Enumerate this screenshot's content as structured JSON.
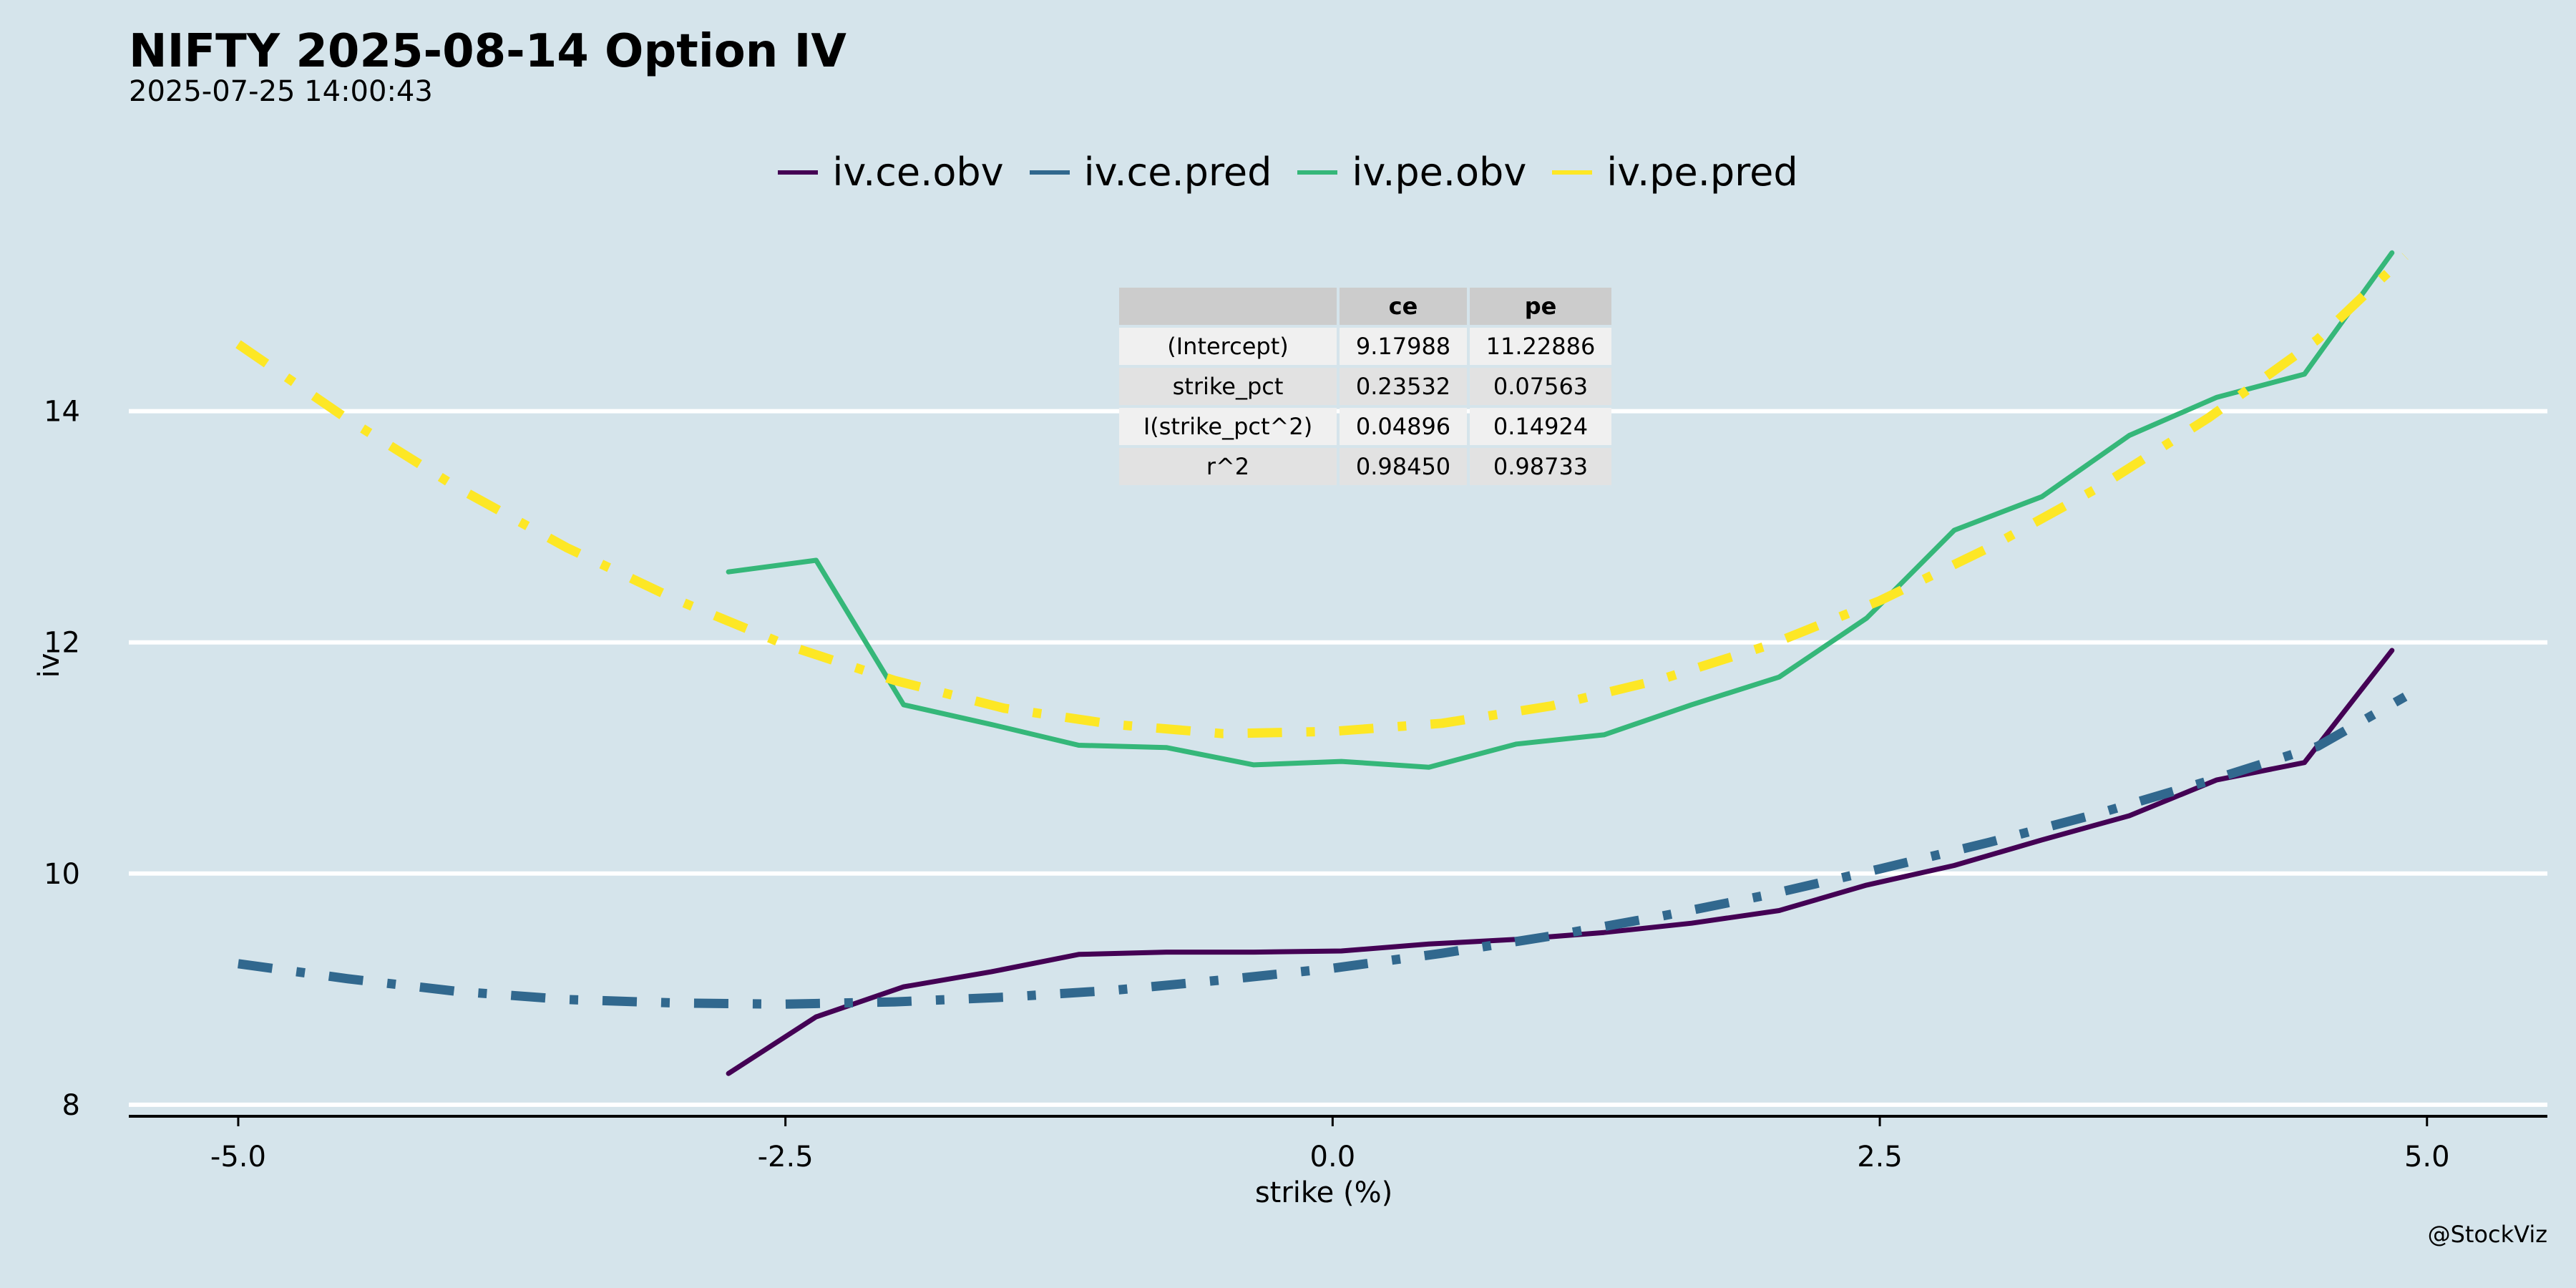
{
  "title": "NIFTY 2025-08-14 Option IV",
  "subtitle": "2025-07-25 14:00:43",
  "credit": "@StockViz",
  "chart_data": {
    "type": "line",
    "xlabel": "strike (%)",
    "ylabel": "iv",
    "xlim": [
      -5.5,
      5.55
    ],
    "ylim": [
      7.9,
      15.7
    ],
    "xticks": [
      -5.0,
      -2.5,
      0.0,
      2.5,
      5.0
    ],
    "xtick_labels": [
      "-5.0",
      "-2.5",
      "0.0",
      "2.5",
      "5.0"
    ],
    "yticks": [
      8,
      10,
      12,
      14
    ],
    "ytick_labels": [
      "8",
      "10",
      "12",
      "14"
    ],
    "grid": "horizontal major",
    "legend_position": "top",
    "series": [
      {
        "name": "iv.ce.obv",
        "color": "#440154",
        "dash": "solid",
        "x": [
          -2.76,
          -2.36,
          -1.96,
          -1.56,
          -1.16,
          -0.76,
          -0.36,
          0.04,
          0.44,
          0.84,
          1.24,
          1.64,
          2.04,
          2.44,
          2.84,
          3.24,
          3.64,
          4.04,
          4.44,
          4.84
        ],
        "y": [
          8.27,
          8.76,
          9.02,
          9.15,
          9.3,
          9.32,
          9.32,
          9.33,
          9.39,
          9.43,
          9.49,
          9.57,
          9.68,
          9.9,
          10.07,
          10.29,
          10.5,
          10.81,
          10.96,
          11.93
        ]
      },
      {
        "name": "iv.ce.pred",
        "color": "#31688e",
        "dash": "dashdot",
        "x": [
          -5.0,
          -4.5,
          -4.0,
          -3.5,
          -3.0,
          -2.5,
          -2.0,
          -1.5,
          -1.0,
          -0.5,
          0.0,
          0.5,
          1.0,
          1.5,
          2.0,
          2.5,
          3.0,
          3.5,
          4.0,
          4.5,
          4.9
        ],
        "y": [
          9.22,
          9.09,
          8.98,
          8.91,
          8.88,
          8.87,
          8.89,
          8.93,
          8.99,
          9.08,
          9.18,
          9.31,
          9.46,
          9.63,
          9.82,
          10.04,
          10.27,
          10.52,
          10.8,
          11.1,
          11.53
        ]
      },
      {
        "name": "iv.pe.obv",
        "color": "#35b779",
        "dash": "solid",
        "x": [
          -2.76,
          -2.36,
          -1.96,
          -1.56,
          -1.16,
          -0.76,
          -0.36,
          0.04,
          0.44,
          0.84,
          1.24,
          1.64,
          2.04,
          2.44,
          2.84,
          3.24,
          3.64,
          4.04,
          4.44,
          4.84
        ],
        "y": [
          12.61,
          12.71,
          11.46,
          11.29,
          11.11,
          11.09,
          10.94,
          10.97,
          10.92,
          11.12,
          11.2,
          11.46,
          11.7,
          12.21,
          12.97,
          13.26,
          13.79,
          14.12,
          14.32,
          15.37
        ]
      },
      {
        "name": "iv.pe.pred",
        "color": "#fde725",
        "dash": "dashdot",
        "x": [
          -5.0,
          -4.5,
          -4.0,
          -3.5,
          -3.0,
          -2.5,
          -2.0,
          -1.5,
          -1.0,
          -0.5,
          0.0,
          0.5,
          1.0,
          1.5,
          2.0,
          2.5,
          3.0,
          3.5,
          4.0,
          4.5,
          4.9
        ],
        "y": [
          14.58,
          13.93,
          13.34,
          12.82,
          12.37,
          11.98,
          11.67,
          11.43,
          11.29,
          11.21,
          11.23,
          11.3,
          11.45,
          11.68,
          11.98,
          12.36,
          12.82,
          13.34,
          13.94,
          14.62,
          15.34
        ]
      }
    ]
  },
  "stats_table": {
    "columns": [
      "",
      "ce",
      "pe"
    ],
    "rows": [
      [
        "(Intercept)",
        "9.17988",
        "11.22886"
      ],
      [
        "strike_pct",
        "0.23532",
        "0.07563"
      ],
      [
        "I(strike_pct^2)",
        "0.04896",
        "0.14924"
      ],
      [
        "r^2",
        "0.98450",
        "0.98733"
      ]
    ]
  }
}
